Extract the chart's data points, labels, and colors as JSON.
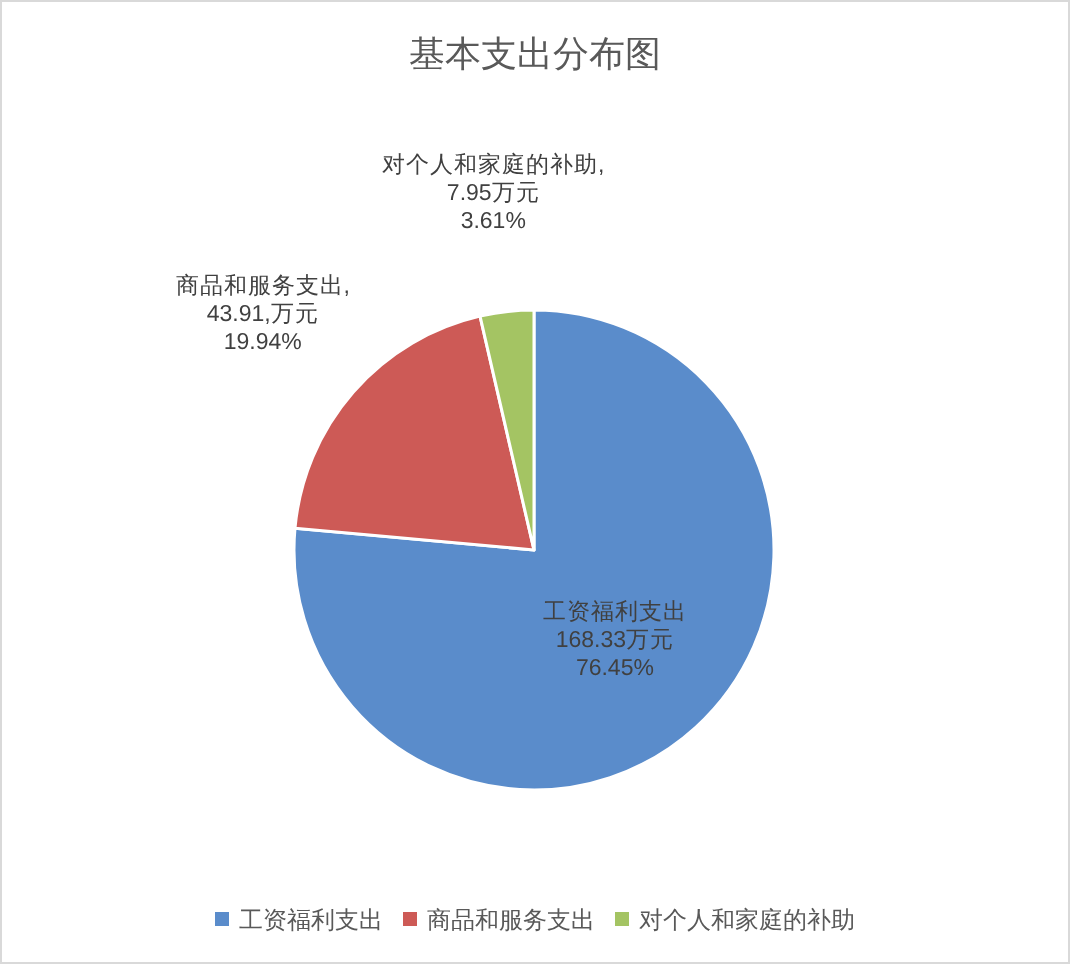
{
  "chart_data": {
    "type": "pie",
    "title": "基本支出分布图",
    "categories": [
      "工资福利支出",
      "商品和服务支出",
      "对个人和家庭的补助"
    ],
    "values": [
      168.33,
      43.91,
      7.95
    ],
    "colors": [
      "#5a8ccb",
      "#cd5a56",
      "#a4c463"
    ],
    "value_labels": [
      "工资福利支出\n168.33万元\n76.45%",
      "商品和服务支出,\n43.91,万元\n19.94%",
      "对个人和家庭的补助,\n7.95万元\n3.61%"
    ],
    "legend": "bottom"
  }
}
